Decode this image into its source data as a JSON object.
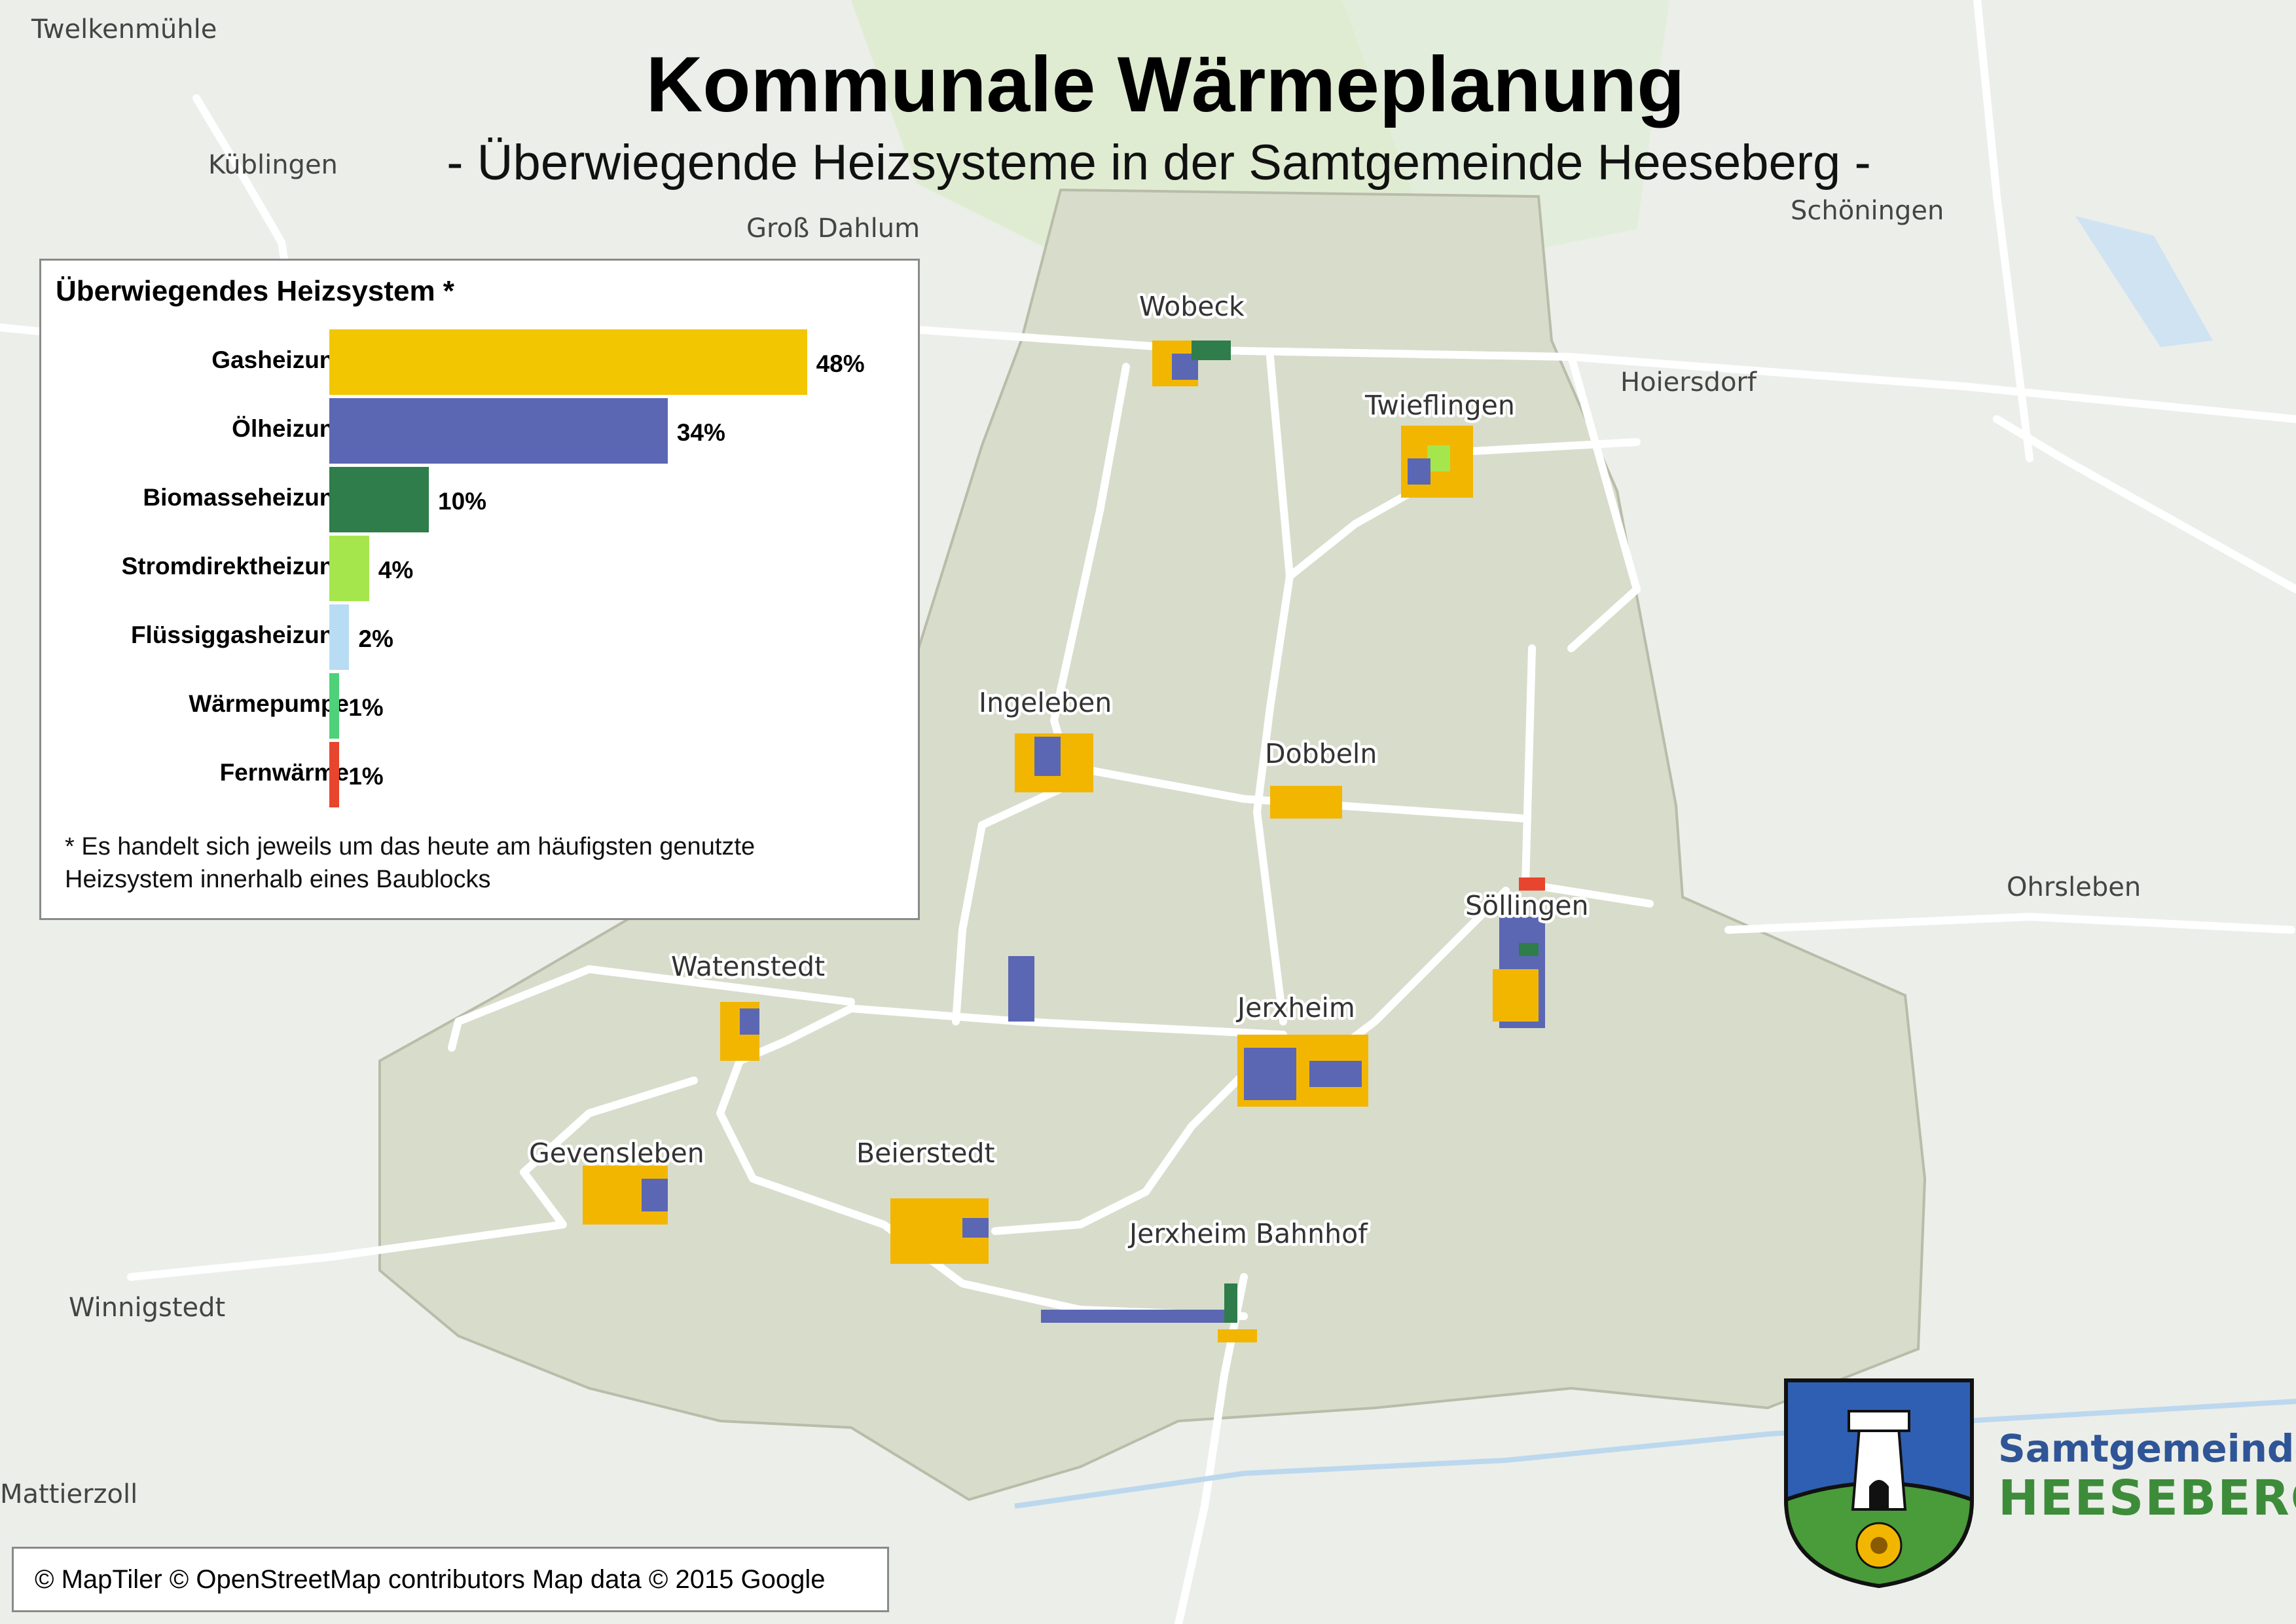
{
  "title": "Kommunale Wärmeplanung",
  "subtitle": "- Überwiegende Heizsysteme in der Samtgemeinde Heeseberg -",
  "legend": {
    "title": "Überwiegendes Heizsystem *",
    "footnote_line1": "* Es handelt sich jeweils um das heute am häufigsten genutzte",
    "footnote_line2": "Heizsystem innerhalb eines Baublocks"
  },
  "chart_data": {
    "type": "bar",
    "orientation": "horizontal",
    "title": "Überwiegendes Heizsystem *",
    "categories": [
      "Gasheizung",
      "Ölheizung",
      "Biomasseheizung",
      "Stromdirektheizung",
      "Flüssiggasheizung",
      "Wärmepumpe",
      "Fernwärme"
    ],
    "values": [
      48,
      34,
      10,
      4,
      2,
      1,
      1
    ],
    "labels": [
      "48%",
      "34%",
      "10%",
      "4%",
      "2%",
      "1%",
      "1%"
    ],
    "unit": "%",
    "colors": [
      "#f2c600",
      "#5b67b3",
      "#2e7d4a",
      "#a6e64d",
      "#b9dcf5",
      "#4fd17a",
      "#e8452e"
    ]
  },
  "map": {
    "places": [
      "Twelkenmühle",
      "Küblingen",
      "Groß Dahlum",
      "Schöningen",
      "Hoiersdorf",
      "Ohrsleben",
      "Winnigstedt",
      "Mattierzoll"
    ],
    "villages": [
      "Wobeck",
      "Twieflingen",
      "Ingeleben",
      "Dobbeln",
      "Söllingen",
      "Watenstedt",
      "Jerxheim",
      "Gevensleben",
      "Beierstedt",
      "Jerxheim Bahnhof"
    ]
  },
  "attribution": "© MapTiler © OpenStreetMap contributors Map data © 2015 Google",
  "logo": {
    "line1": "Samtgemeinde",
    "line2": "HEESEBERG"
  }
}
